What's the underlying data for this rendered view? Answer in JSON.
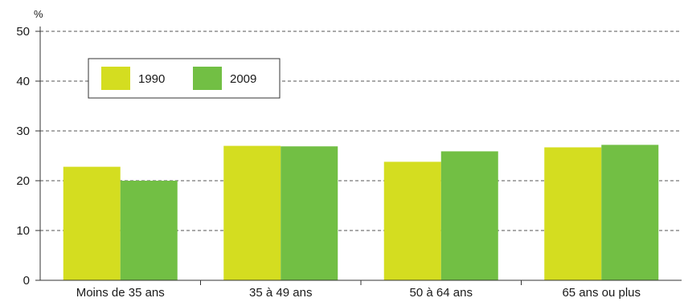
{
  "chart_data": {
    "type": "bar",
    "title": "",
    "xlabel": "",
    "ylabel": "%",
    "ylim": [
      0,
      50
    ],
    "yticks": [
      0,
      10,
      20,
      30,
      40,
      50
    ],
    "grid": true,
    "legend_position": "top-left",
    "categories": [
      "Moins de 35 ans",
      "35 à 49 ans",
      "50 à 64 ans",
      "65 ans ou plus"
    ],
    "series": [
      {
        "name": "1990",
        "color": "#d4dd20",
        "values": [
          22.8,
          27.0,
          23.8,
          26.7
        ]
      },
      {
        "name": "2009",
        "color": "#72bf44",
        "values": [
          20.0,
          26.9,
          25.9,
          27.2
        ]
      }
    ]
  }
}
